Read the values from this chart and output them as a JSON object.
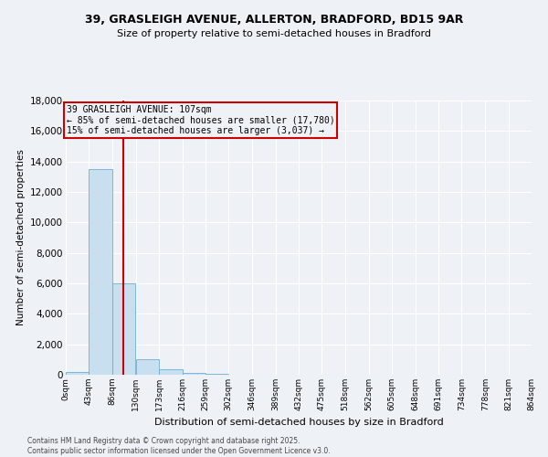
{
  "title": "39, GRASLEIGH AVENUE, ALLERTON, BRADFORD, BD15 9AR",
  "subtitle": "Size of property relative to semi-detached houses in Bradford",
  "xlabel": "Distribution of semi-detached houses by size in Bradford",
  "ylabel": "Number of semi-detached properties",
  "annotation_line1": "39 GRASLEIGH AVENUE: 107sqm",
  "annotation_line2": "← 85% of semi-detached houses are smaller (17,780)",
  "annotation_line3": "15% of semi-detached houses are larger (3,037) →",
  "property_size": 107,
  "bin_edges": [
    0,
    43,
    86,
    130,
    173,
    216,
    259,
    302,
    346,
    389,
    432,
    475,
    518,
    562,
    605,
    648,
    691,
    734,
    778,
    821,
    864
  ],
  "bar_heights": [
    200,
    13500,
    6000,
    1000,
    350,
    100,
    50,
    10,
    5,
    2,
    1,
    0,
    0,
    0,
    0,
    0,
    0,
    0,
    0,
    0
  ],
  "bar_color": "#c8dff0",
  "bar_edge_color": "#6baed6",
  "red_line_color": "#cc0000",
  "annotation_box_edge": "#cc0000",
  "background_color": "#eef2f7",
  "grid_color": "#ffffff",
  "footer_text": "Contains HM Land Registry data © Crown copyright and database right 2025.\nContains public sector information licensed under the Open Government Licence v3.0.",
  "ylim": [
    0,
    18000
  ],
  "yticks": [
    0,
    2000,
    4000,
    6000,
    8000,
    10000,
    12000,
    14000,
    16000,
    18000
  ]
}
